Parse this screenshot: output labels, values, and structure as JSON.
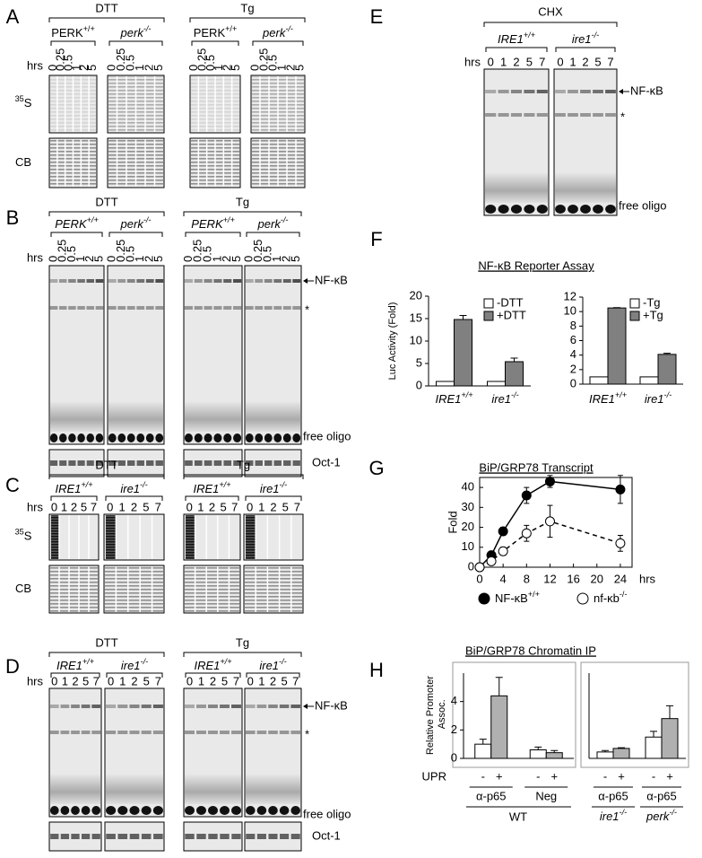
{
  "figure": {
    "A": {
      "letter": "A",
      "groups": [
        "DTT",
        "Tg"
      ],
      "genotypes": [
        "PERK+/+",
        "perk-/-"
      ],
      "time_label": "hrs",
      "times": [
        0,
        0.25,
        0.5,
        1,
        2,
        5
      ],
      "rows": [
        "35S",
        "CB"
      ]
    },
    "B": {
      "letter": "B",
      "groups": [
        "DTT",
        "Tg"
      ],
      "genotypes": [
        "PERK+/+",
        "perk-/-"
      ],
      "time_label": "hrs",
      "times": [
        0,
        0.25,
        0.5,
        1,
        2,
        5
      ],
      "bands": [
        "NF-κB",
        "*",
        "free oligo"
      ],
      "loading": "Oct-1"
    },
    "C": {
      "letter": "C",
      "groups": [
        "DTT",
        "Tg"
      ],
      "genotypes": [
        "IRE1+/+",
        "ire1-/-"
      ],
      "time_label": "hrs",
      "times": [
        0,
        1,
        2,
        5,
        7
      ],
      "rows": [
        "35S",
        "CB"
      ]
    },
    "D": {
      "letter": "D",
      "groups": [
        "DTT",
        "Tg"
      ],
      "genotypes": [
        "IRE1+/+",
        "ire1-/-"
      ],
      "time_label": "hrs",
      "times": [
        0,
        1,
        2,
        5,
        7
      ],
      "bands": [
        "NF-κB",
        "*",
        "free oligo"
      ],
      "loading": "Oct-1"
    },
    "E": {
      "letter": "E",
      "group": "CHX",
      "genotypes": [
        "IRE1+/+",
        "ire1-/-"
      ],
      "time_label": "hrs",
      "times": [
        0,
        1,
        2,
        5,
        7
      ],
      "bands": [
        "NF-κB",
        "*",
        "free oligo"
      ]
    }
  },
  "chart_data": [
    {
      "type": "bar",
      "letter": "F",
      "title": "NF-κB Reporter Assay",
      "ylabel": "Luc Activity (Fold)",
      "categories": [
        "IRE1+/+",
        "ire1-/-"
      ],
      "series": [
        {
          "name": "-DTT",
          "color": "#ffffff",
          "values": [
            1,
            1
          ]
        },
        {
          "name": "+DTT",
          "color": "#808080",
          "values": [
            14.8,
            5.4
          ],
          "errors": [
            0.9,
            0.8
          ]
        }
      ],
      "ylim": [
        0,
        20
      ],
      "yticks": [
        0,
        5,
        10,
        15,
        20
      ],
      "legend": "upper-right"
    },
    {
      "type": "bar",
      "categories": [
        "IRE1+/+",
        "ire1-/-"
      ],
      "series": [
        {
          "name": "-Tg",
          "color": "#ffffff",
          "values": [
            1,
            1
          ]
        },
        {
          "name": "+Tg",
          "color": "#808080",
          "values": [
            10.5,
            4.1
          ],
          "errors": [
            0.05,
            0.15
          ]
        }
      ],
      "ylim": [
        0,
        12
      ],
      "yticks": [
        0,
        2,
        4,
        6,
        8,
        10,
        12
      ],
      "legend": "upper-right"
    },
    {
      "type": "line",
      "letter": "G",
      "title": "BiP/GRP78 Transcript",
      "ylabel": "Fold",
      "xlabel": "hrs",
      "series": [
        {
          "name": "NF-κB+/+",
          "color": "#000000",
          "line": "solid",
          "x": [
            0,
            2,
            4,
            8,
            12,
            24
          ],
          "values": [
            0,
            6,
            18,
            36,
            43,
            39
          ],
          "errors": [
            1,
            1,
            2,
            4,
            3,
            7
          ]
        },
        {
          "name": "nf-κb-/-",
          "color": "#ffffff",
          "line": "dashed",
          "x": [
            0,
            2,
            4,
            8,
            12,
            24
          ],
          "values": [
            0,
            3,
            8,
            17,
            23,
            12
          ],
          "errors": [
            1,
            1,
            2,
            4,
            8,
            4
          ]
        }
      ],
      "xlim": [
        0,
        26
      ],
      "xticks": [
        0,
        4,
        8,
        12,
        16,
        20,
        24
      ],
      "ylim": [
        0,
        45
      ],
      "yticks": [
        0,
        10,
        20,
        30,
        40
      ]
    },
    {
      "type": "bar",
      "letter": "H",
      "title": "BiP/GRP78 Chromatin IP",
      "ylabel": "Relative Promoter Assoc.",
      "condition_label": "UPR",
      "categories": [
        "α-p65",
        "Neg"
      ],
      "group_label": "WT",
      "series": [
        {
          "name": "-",
          "color": "#ffffff",
          "values": [
            1.0,
            0.6
          ],
          "errors": [
            0.35,
            0.2
          ]
        },
        {
          "name": "+",
          "color": "#b0b0b0",
          "values": [
            4.4,
            0.4
          ],
          "errors": [
            1.3,
            0.15
          ]
        }
      ],
      "ylim": [
        0,
        6
      ],
      "yticks": [
        0,
        2,
        4
      ]
    },
    {
      "type": "bar",
      "categories": [
        "α-p65",
        "α-p65"
      ],
      "category_groups": [
        "ire1-/-",
        "perk-/-"
      ],
      "series": [
        {
          "name": "-",
          "color": "#ffffff",
          "values": [
            0.45,
            1.5
          ],
          "errors": [
            0.1,
            0.4
          ]
        },
        {
          "name": "+",
          "color": "#b0b0b0",
          "values": [
            0.7,
            2.8
          ],
          "errors": [
            0.05,
            0.9
          ]
        }
      ],
      "ylim": [
        0,
        6
      ]
    }
  ]
}
